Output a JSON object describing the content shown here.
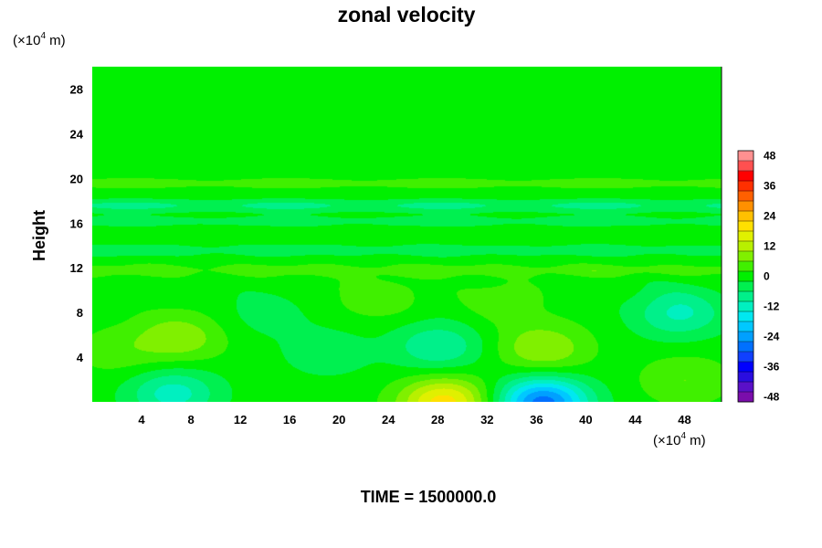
{
  "chart_data": {
    "type": "heatmap",
    "title": "zonal velocity",
    "ylabel": "Height",
    "xlabel": "",
    "x_unit_prefix": "(×10",
    "x_unit_exp": "4",
    "x_unit_suffix": " m)",
    "y_unit_prefix": "(×10",
    "y_unit_exp": "4",
    "y_unit_suffix": " m)",
    "xlim": [
      0,
      51
    ],
    "ylim": [
      0,
      30
    ],
    "x_ticks": [
      4,
      8,
      12,
      16,
      20,
      24,
      28,
      32,
      36,
      40,
      44,
      48
    ],
    "y_ticks": [
      4,
      8,
      12,
      16,
      20,
      24,
      28
    ],
    "colorbar": {
      "min": -50,
      "max": 50,
      "step": 4,
      "ticks": [
        48,
        36,
        24,
        12,
        0,
        -12,
        -24,
        -36,
        -48
      ]
    },
    "field_value_range": [
      -28,
      20
    ],
    "features": [
      {
        "x": 28.5,
        "y": 0.0,
        "value": 20
      },
      {
        "x": 36.5,
        "y": 0.0,
        "value": -28
      },
      {
        "x": 6.5,
        "y": 0.8,
        "value": -12
      },
      {
        "x": 7.0,
        "y": 5.8,
        "value": 9
      },
      {
        "x": 36.5,
        "y": 4.8,
        "value": 10
      },
      {
        "x": 28.0,
        "y": 5.0,
        "value": -10
      },
      {
        "x": 47.5,
        "y": 8.0,
        "value": -11
      },
      {
        "x": 19.0,
        "y": 4.5,
        "value": -5
      },
      {
        "x": 48.0,
        "y": 2.0,
        "value": 6
      },
      {
        "x": 2.0,
        "y": 4.5,
        "value": 4
      },
      {
        "x": 23.0,
        "y": 9.5,
        "value": 5
      },
      {
        "x": 33.0,
        "y": 9.0,
        "value": 4
      },
      {
        "x": 14.0,
        "y": 8.0,
        "value": -4
      }
    ],
    "height_bands": [
      {
        "y": 11.8,
        "value": 5
      },
      {
        "y": 13.6,
        "value": -5
      },
      {
        "y": 17.6,
        "value": -8
      },
      {
        "y": 19.6,
        "value": 4
      },
      {
        "y": 16.2,
        "value": -4
      }
    ],
    "time_label": "TIME = 1500000.0"
  },
  "colors": {
    "palette": [
      "#7a0dab",
      "#5a10c8",
      "#2a0de0",
      "#0000ff",
      "#1040ff",
      "#0070ff",
      "#00a0ff",
      "#00c8ff",
      "#00e8f0",
      "#00f0c0",
      "#00f08a",
      "#00f050",
      "#00f000",
      "#40f000",
      "#80f000",
      "#b8f000",
      "#e0f000",
      "#ffe000",
      "#ffc000",
      "#ff9000",
      "#ff6000",
      "#ff3000",
      "#ff0000",
      "#ff5050",
      "#ff9090"
    ]
  }
}
